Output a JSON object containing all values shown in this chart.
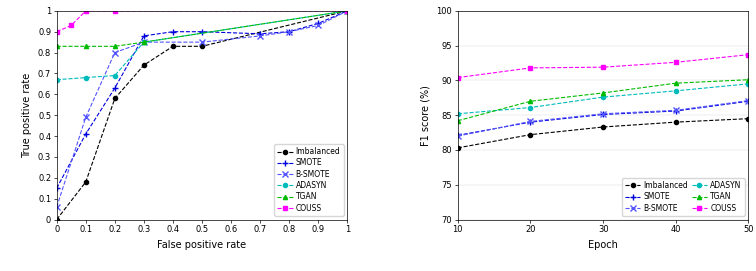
{
  "roc": {
    "xlabel": "False positive rate",
    "ylabel": "True positive rate",
    "xlim": [
      0,
      1
    ],
    "ylim": [
      0,
      1
    ],
    "xticks": [
      0,
      0.1,
      0.2,
      0.3,
      0.4,
      0.5,
      0.6,
      0.7,
      0.8,
      0.9,
      1
    ],
    "yticks": [
      0,
      0.1,
      0.2,
      0.3,
      0.4,
      0.5,
      0.6,
      0.7,
      0.8,
      0.9,
      1
    ],
    "xtick_labels": [
      "0",
      "0.1",
      "0.2",
      "0.3",
      "0.4",
      "0.5",
      "0.6",
      "0.7",
      "0.8",
      "0.9",
      "1"
    ],
    "ytick_labels": [
      "0",
      "0.1",
      "0.2",
      "0.3",
      "0.4",
      "0.5",
      "0.6",
      "0.7",
      "0.8",
      "0.9",
      "1"
    ],
    "series": {
      "Imbalanced": {
        "x": [
          0,
          0.1,
          0.2,
          0.3,
          0.4,
          0.5,
          1.0
        ],
        "y": [
          0,
          0.18,
          0.58,
          0.74,
          0.83,
          0.83,
          1.0
        ],
        "color": "#000000",
        "marker": "o",
        "linestyle": "--",
        "markersize": 3
      },
      "SMOTE": {
        "x": [
          0,
          0.1,
          0.2,
          0.3,
          0.4,
          0.5,
          0.7,
          0.8,
          0.9,
          1.0
        ],
        "y": [
          0.15,
          0.41,
          0.63,
          0.88,
          0.9,
          0.9,
          0.89,
          0.9,
          0.94,
          1.0
        ],
        "color": "#0000dd",
        "marker": "+",
        "linestyle": "--",
        "markersize": 4
      },
      "B-SMOTE": {
        "x": [
          0,
          0.1,
          0.2,
          0.3,
          0.5,
          0.7,
          0.8,
          0.9,
          1.0
        ],
        "y": [
          0.06,
          0.49,
          0.8,
          0.85,
          0.85,
          0.88,
          0.9,
          0.93,
          1.0
        ],
        "color": "#5555ff",
        "marker": "x",
        "linestyle": "--",
        "markersize": 4
      },
      "ADASYN": {
        "x": [
          0,
          0.1,
          0.2,
          0.3,
          1.0
        ],
        "y": [
          0.67,
          0.68,
          0.69,
          0.85,
          1.0
        ],
        "color": "#00bbbb",
        "marker": "o",
        "linestyle": "--",
        "markersize": 3
      },
      "TGAN": {
        "x": [
          0,
          0.1,
          0.2,
          0.3,
          1.0
        ],
        "y": [
          0.83,
          0.83,
          0.83,
          0.85,
          1.0
        ],
        "color": "#00bb00",
        "marker": "^",
        "linestyle": "--",
        "markersize": 3
      },
      "COUSS": {
        "x": [
          0,
          0.05,
          0.1,
          0.2,
          1.0
        ],
        "y": [
          0.9,
          0.93,
          1.0,
          1.0,
          1.0
        ],
        "color": "#ff00ff",
        "marker": "s",
        "linestyle": "--",
        "markersize": 3
      }
    },
    "legend_order": [
      "Imbalanced",
      "SMOTE",
      "B-SMOTE",
      "ADASYN",
      "TGAN",
      "COUSS"
    ]
  },
  "f1": {
    "xlabel": "Epoch",
    "ylabel": "F1 score (%)",
    "xlim": [
      10,
      50
    ],
    "ylim": [
      70,
      100
    ],
    "xticks": [
      10,
      20,
      30,
      40,
      50
    ],
    "yticks": [
      70,
      75,
      80,
      85,
      90,
      95,
      100
    ],
    "xtick_labels": [
      "10",
      "20",
      "30",
      "40",
      "50"
    ],
    "ytick_labels": [
      "70",
      "75",
      "80",
      "85",
      "90",
      "95",
      "100"
    ],
    "series": {
      "Imbalanced": {
        "x": [
          10,
          20,
          30,
          40,
          50
        ],
        "y": [
          80.3,
          82.2,
          83.3,
          84.0,
          84.5
        ],
        "color": "#000000",
        "marker": "o",
        "linestyle": "--",
        "markersize": 3
      },
      "SMOTE": {
        "x": [
          10,
          20,
          30,
          40,
          50
        ],
        "y": [
          82.1,
          84.0,
          85.1,
          85.6,
          87.0
        ],
        "color": "#0000dd",
        "marker": "+",
        "linestyle": "--",
        "markersize": 4
      },
      "B-SMOTE": {
        "x": [
          10,
          20,
          30,
          40,
          50
        ],
        "y": [
          82.0,
          84.1,
          85.2,
          85.7,
          87.1
        ],
        "color": "#5555ff",
        "marker": "x",
        "linestyle": "--",
        "markersize": 4
      },
      "ADASYN": {
        "x": [
          10,
          20,
          30,
          40,
          50
        ],
        "y": [
          85.2,
          86.1,
          87.6,
          88.5,
          89.5
        ],
        "color": "#00bbbb",
        "marker": "o",
        "linestyle": "--",
        "markersize": 3
      },
      "TGAN": {
        "x": [
          10,
          20,
          30,
          40,
          50
        ],
        "y": [
          84.2,
          87.0,
          88.2,
          89.6,
          90.1
        ],
        "color": "#00bb00",
        "marker": "^",
        "linestyle": "--",
        "markersize": 3
      },
      "COUSS": {
        "x": [
          10,
          20,
          30,
          40,
          50
        ],
        "y": [
          90.4,
          91.8,
          91.9,
          92.6,
          93.7
        ],
        "color": "#ff00ff",
        "marker": "s",
        "linestyle": "--",
        "markersize": 3
      }
    },
    "legend_cols": 2,
    "legend_order": [
      "Imbalanced",
      "SMOTE",
      "B-SMOTE",
      "ADASYN",
      "TGAN",
      "COUSS"
    ],
    "legend_order_col1": [
      "Imbalanced",
      "B-SMOTE",
      "TGAN"
    ],
    "legend_order_col2": [
      "SMOTE",
      "ADASYN",
      "COUSS"
    ]
  }
}
